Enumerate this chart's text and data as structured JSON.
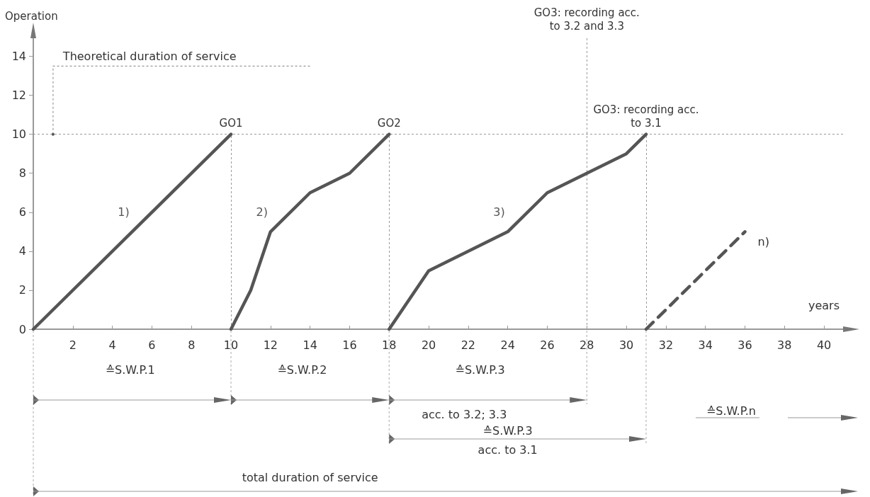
{
  "chart_data": {
    "type": "line",
    "xlabel": "years",
    "ylabel": "Operation",
    "xlim": [
      0,
      41
    ],
    "ylim": [
      0,
      15
    ],
    "xticks": [
      2,
      4,
      6,
      8,
      10,
      12,
      14,
      16,
      18,
      20,
      22,
      24,
      26,
      28,
      30,
      32,
      34,
      36,
      38,
      40
    ],
    "yticks": [
      0,
      2,
      4,
      6,
      8,
      10,
      12,
      14
    ],
    "grid": false,
    "legend": false,
    "marker": "none",
    "series": [
      {
        "name": "1)",
        "color": "#555555",
        "x": [
          0,
          10
        ],
        "values": [
          0,
          10
        ]
      },
      {
        "name": "2)",
        "color": "#555555",
        "x": [
          10,
          11,
          12,
          14,
          16,
          18
        ],
        "values": [
          0,
          2,
          5,
          7,
          8,
          10
        ]
      },
      {
        "name": "3)",
        "color": "#555555",
        "x": [
          18,
          20,
          24,
          26,
          30,
          31
        ],
        "values": [
          0,
          3,
          5,
          7,
          9,
          10
        ]
      },
      {
        "name": "n)",
        "color": "#555555",
        "x": [
          31,
          36
        ],
        "values": [
          0,
          5
        ],
        "line_style": "dashed"
      }
    ],
    "ref_lines": [
      {
        "axis": "y",
        "value": 10,
        "label": null
      },
      {
        "axis": "x",
        "value": 10,
        "label": "GO1"
      },
      {
        "axis": "x",
        "value": 18,
        "label": "GO2"
      },
      {
        "axis": "x",
        "value": 28,
        "label": "GO3: recording acc.\nto 3.2 and 3.3"
      },
      {
        "axis": "x",
        "value": 31,
        "label": "GO3: recording acc.\nto 3.1"
      }
    ],
    "annotations": [
      "Theoretical duration of service",
      "≙S.W.P.1",
      "≙S.W.P.2",
      "≙S.W.P.3",
      "acc. to 3.2; 3.3",
      "≙S.W.P.n",
      "≙S.W.P.3",
      "acc. to 3.1",
      "total duration of service"
    ]
  }
}
